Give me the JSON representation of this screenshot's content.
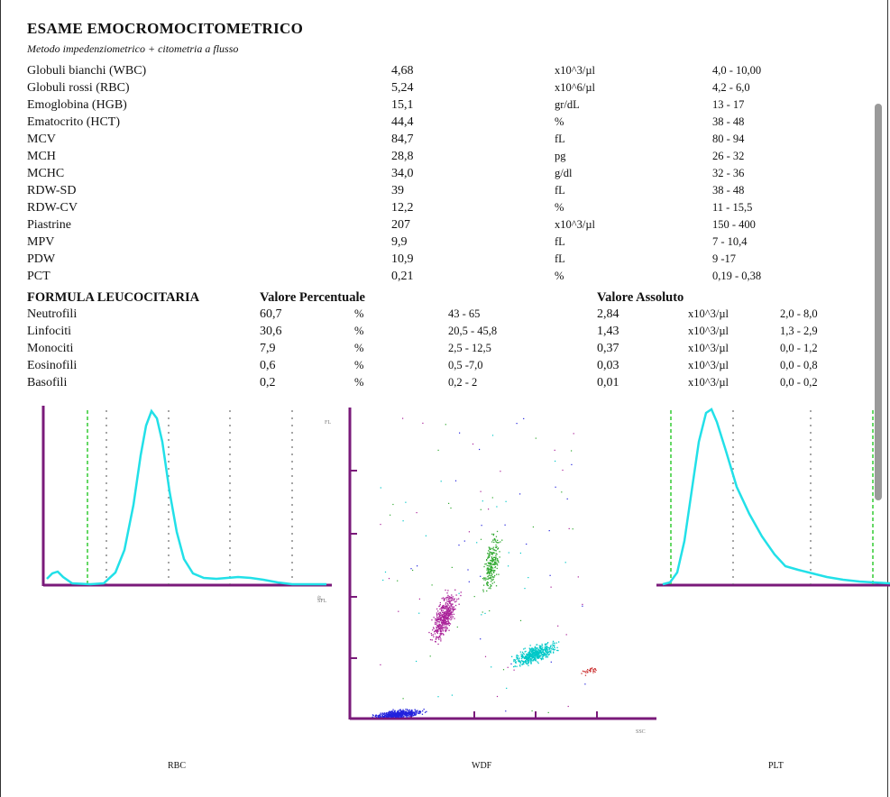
{
  "report": {
    "title": "ESAME EMOCROMOCITOMETRICO",
    "subtitle": "Metodo impedenziometrico + citometria a flusso"
  },
  "cbc_rows": [
    {
      "name": "Globuli bianchi (WBC)",
      "value": "4,68",
      "unit": "x10^3/µl",
      "ref": "4,0 - 10,00"
    },
    {
      "name": "Globuli rossi (RBC)",
      "value": "5,24",
      "unit": "x10^6/µl",
      "ref": "4,2 - 6,0"
    },
    {
      "name": "Emoglobina (HGB)",
      "value": "15,1",
      "unit": "gr/dL",
      "ref": "13 - 17"
    },
    {
      "name": "Ematocrito (HCT)",
      "value": "44,4",
      "unit": "%",
      "ref": "38 - 48"
    },
    {
      "name": "MCV",
      "value": "84,7",
      "unit": "fL",
      "ref": "80 - 94"
    },
    {
      "name": "MCH",
      "value": "28,8",
      "unit": "pg",
      "ref": "26 - 32"
    },
    {
      "name": "MCHC",
      "value": "34,0",
      "unit": "g/dl",
      "ref": "32 - 36"
    },
    {
      "name": "RDW-SD",
      "value": "39",
      "unit": "fL",
      "ref": "38 - 48"
    },
    {
      "name": "RDW-CV",
      "value": "12,2",
      "unit": "%",
      "ref": "11 - 15,5"
    },
    {
      "name": "Piastrine",
      "value": "207",
      "unit": "x10^3/µl",
      "ref": "150 - 400"
    },
    {
      "name": "MPV",
      "value": "9,9",
      "unit": "fL",
      "ref": "7 - 10,4"
    },
    {
      "name": "PDW",
      "value": "10,9",
      "unit": "fL",
      "ref": "9 -17"
    },
    {
      "name": "PCT",
      "value": "0,21",
      "unit": "%",
      "ref": "0,19 - 0,38"
    }
  ],
  "formula": {
    "heading": "FORMULA LEUCOCITARIA",
    "pct_heading": "Valore  Percentuale",
    "abs_heading": "Valore  Assoluto",
    "rows": [
      {
        "name": "Neutrofili",
        "pct": "60,7",
        "pct_unit": "%",
        "pct_ref": "43 - 65",
        "abs": "2,84",
        "abs_unit": "x10^3/µl",
        "abs_ref": "2,0 - 8,0"
      },
      {
        "name": "Linfociti",
        "pct": "30,6",
        "pct_unit": "%",
        "pct_ref": "20,5 - 45,8",
        "abs": "1,43",
        "abs_unit": "x10^3/µl",
        "abs_ref": "1,3 - 2,9"
      },
      {
        "name": "Monociti",
        "pct": "7,9",
        "pct_unit": "%",
        "pct_ref": "2,5 - 12,5",
        "abs": "0,37",
        "abs_unit": "x10^3/µl",
        "abs_ref": "0,0 - 1,2"
      },
      {
        "name": "Eosinofili",
        "pct": "0,6",
        "pct_unit": "%",
        "pct_ref": "0,5 -7,0",
        "abs": "0,03",
        "abs_unit": "x10^3/µl",
        "abs_ref": "0,0 - 0,8"
      },
      {
        "name": "Basofili",
        "pct": "0,2",
        "pct_unit": "%",
        "pct_ref": "0,2 - 2",
        "abs": "0,01",
        "abs_unit": "x10^3/µl",
        "abs_ref": "0,0 - 0,2"
      }
    ]
  },
  "charts": {
    "rbc_caption": "RBC",
    "wdf_caption": "WDF",
    "plt_caption": "PLT"
  },
  "colors": {
    "axis": "#7a1a7a",
    "curve": "#22e0e8",
    "discriminator": "#33cc33",
    "marker": "#888888",
    "neutrophils": "#00c8c8",
    "lymphocytes": "#2222dd",
    "monocytes": "#33aa33",
    "eosinophils": "#cc3333",
    "debris": "#aa2299"
  }
}
